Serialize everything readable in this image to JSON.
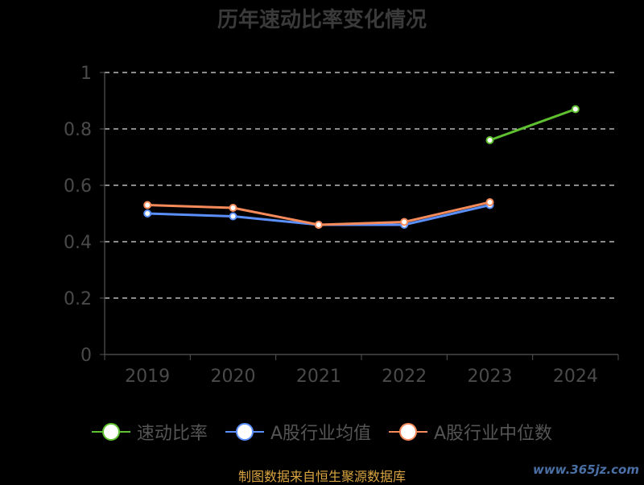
{
  "chart_data": {
    "type": "line",
    "title": "历年速动比率变化情况",
    "categories": [
      "2019",
      "2020",
      "2021",
      "2022",
      "2023",
      "2024"
    ],
    "ylim": [
      0,
      1
    ],
    "yticks": [
      "0",
      "0.2",
      "0.4",
      "0.6",
      "0.8",
      "1"
    ],
    "grid": true,
    "legend_position": "bottom",
    "series": [
      {
        "name": "速动比率",
        "color": "#5fc030",
        "values": [
          null,
          null,
          null,
          null,
          0.76,
          0.87
        ]
      },
      {
        "name": "A股行业均值",
        "color": "#5b8ff9",
        "values": [
          0.5,
          0.49,
          0.46,
          0.46,
          0.53,
          null
        ]
      },
      {
        "name": "A股行业中位数",
        "color": "#f58a5a",
        "values": [
          0.53,
          0.52,
          0.46,
          0.47,
          0.54,
          null
        ]
      }
    ]
  },
  "footer": {
    "source": "制图数据来自恒生聚源数据库",
    "watermark": "www.365jz.com"
  }
}
